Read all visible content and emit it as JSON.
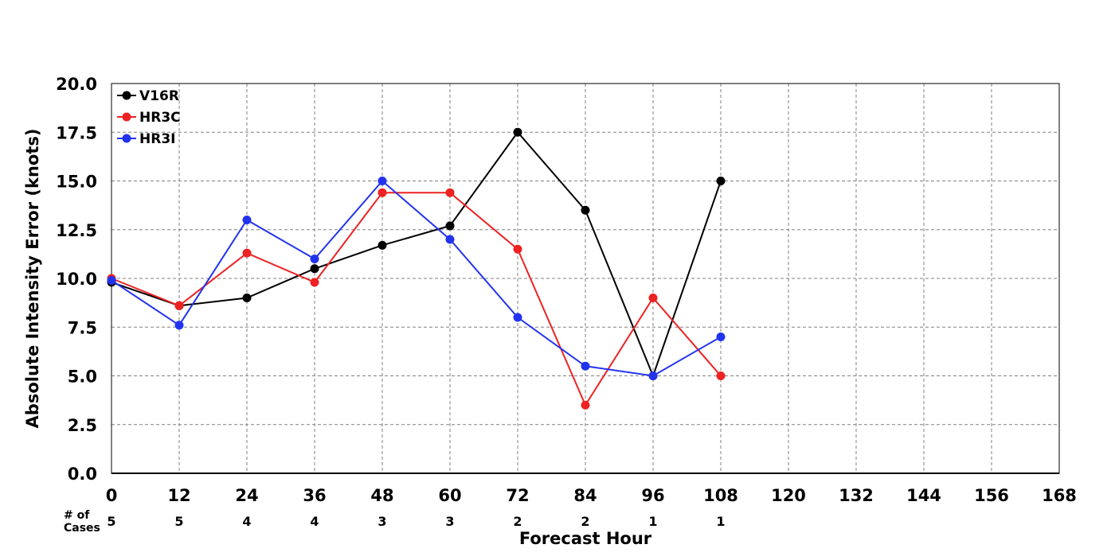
{
  "chart_data": {
    "type": "line",
    "xlabel": "Forecast Hour",
    "ylabel": "Absolute Intensity Error (knots)",
    "xlim": [
      0,
      168
    ],
    "ylim": [
      0,
      20
    ],
    "x_ticks": [
      "0",
      "12",
      "24",
      "36",
      "48",
      "60",
      "72",
      "84",
      "96",
      "108",
      "120",
      "132",
      "144",
      "156",
      "168"
    ],
    "y_ticks": [
      "0.0",
      "2.5",
      "5.0",
      "7.5",
      "10.0",
      "12.5",
      "15.0",
      "17.5",
      "20.0"
    ],
    "grid": true,
    "legend_position": "top-left",
    "cases_label": "# of\nCases",
    "cases": [
      {
        "x": 0,
        "n": "5"
      },
      {
        "x": 12,
        "n": "5"
      },
      {
        "x": 24,
        "n": "4"
      },
      {
        "x": 36,
        "n": "4"
      },
      {
        "x": 48,
        "n": "3"
      },
      {
        "x": 60,
        "n": "3"
      },
      {
        "x": 72,
        "n": "2"
      },
      {
        "x": 84,
        "n": "2"
      },
      {
        "x": 96,
        "n": "1"
      },
      {
        "x": 108,
        "n": "1"
      }
    ],
    "x": [
      0,
      12,
      24,
      36,
      48,
      60,
      72,
      84,
      96,
      108
    ],
    "series": [
      {
        "name": "V16R",
        "color": "#000000",
        "values": [
          9.8,
          8.6,
          9.0,
          10.5,
          11.7,
          12.7,
          17.5,
          13.5,
          5.0,
          15.0
        ]
      },
      {
        "name": "HR3C",
        "color": "#ee2222",
        "values": [
          10.0,
          8.6,
          11.3,
          9.8,
          14.4,
          14.4,
          11.5,
          3.5,
          9.0,
          5.0
        ]
      },
      {
        "name": "HR3I",
        "color": "#2233ee",
        "values": [
          9.9,
          7.6,
          13.0,
          11.0,
          15.0,
          12.0,
          8.0,
          5.5,
          5.0,
          7.0
        ]
      }
    ]
  }
}
